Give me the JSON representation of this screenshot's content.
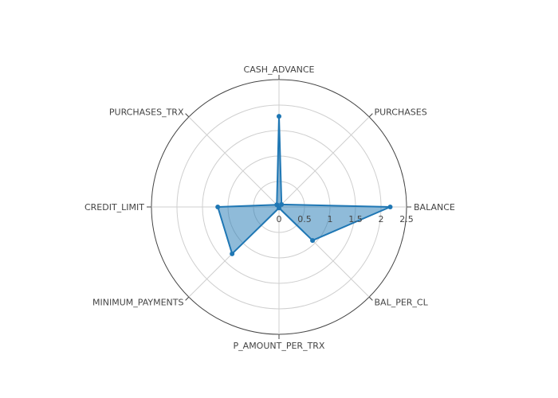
{
  "chart_data": {
    "type": "radar",
    "axes": [
      "BALANCE",
      "PURCHASES",
      "CASH_ADVANCE",
      "PURCHASES_TRX",
      "CREDIT_LIMIT",
      "MINIMUM_PAYMENTS",
      "P_AMOUNT_PER_TRX",
      "BAL_PER_CL"
    ],
    "series": [
      {
        "values": [
          2.18,
          0.07,
          1.78,
          0.06,
          1.2,
          1.3,
          0.02,
          0.93
        ]
      }
    ],
    "radial_range": [
      0,
      2.5
    ],
    "radial_ticks": [
      "0",
      "0.5",
      "1",
      "1.5",
      "2",
      "2.5"
    ],
    "grid": true,
    "colors": {
      "series_line": "#1f77b4",
      "series_fill": "#1f77b4",
      "grid": "#cfcfcf",
      "outer_ring": "#444444"
    }
  }
}
